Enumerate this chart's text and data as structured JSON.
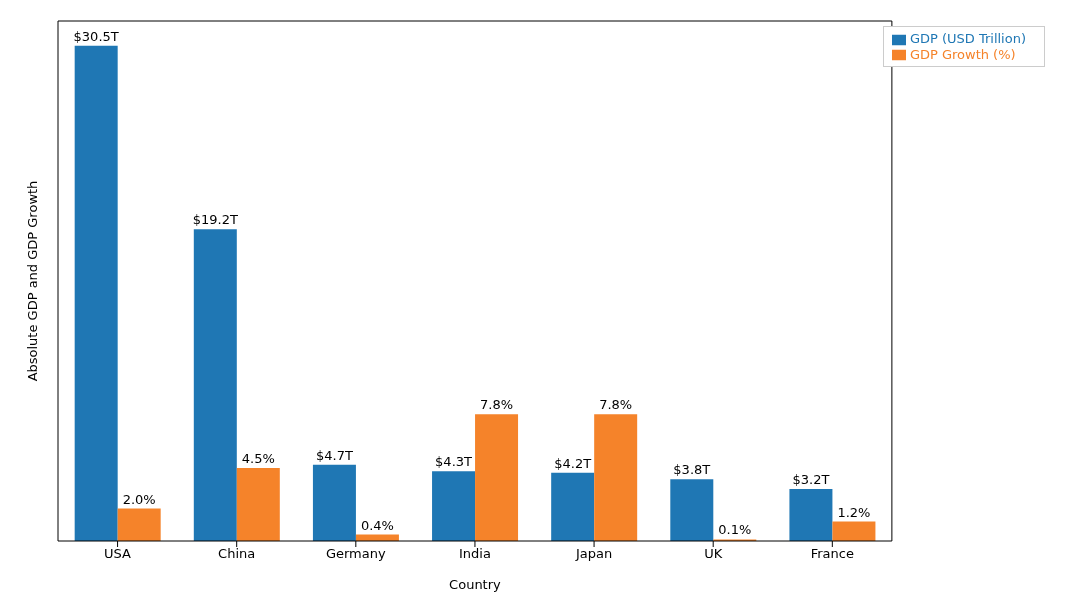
{
  "chart_data": {
    "type": "bar",
    "xlabel": "Country",
    "ylabel": "Absolute GDP and GDP Growth",
    "categories": [
      "USA",
      "China",
      "Germany",
      "India",
      "Japan",
      "UK",
      "France"
    ],
    "series": [
      {
        "name": "GDP (USD Trillion)",
        "color": "#1f77b4",
        "values": [
          30.5,
          19.2,
          4.7,
          4.3,
          4.2,
          3.8,
          3.2
        ],
        "value_labels": [
          "$30.5T",
          "$19.2T",
          "$4.7T",
          "$4.3T",
          "$4.2T",
          "$3.8T",
          "$3.2T"
        ]
      },
      {
        "name": "GDP Growth (%)",
        "color": "#f5832a",
        "values": [
          2.0,
          4.5,
          0.4,
          7.8,
          7.8,
          0.1,
          1.2
        ],
        "value_labels": [
          "2.0%",
          "4.5%",
          "0.4%",
          "7.8%",
          "7.8%",
          "0.1%",
          "1.2%"
        ]
      }
    ],
    "legend": "top right",
    "tick_labels": "x"
  }
}
